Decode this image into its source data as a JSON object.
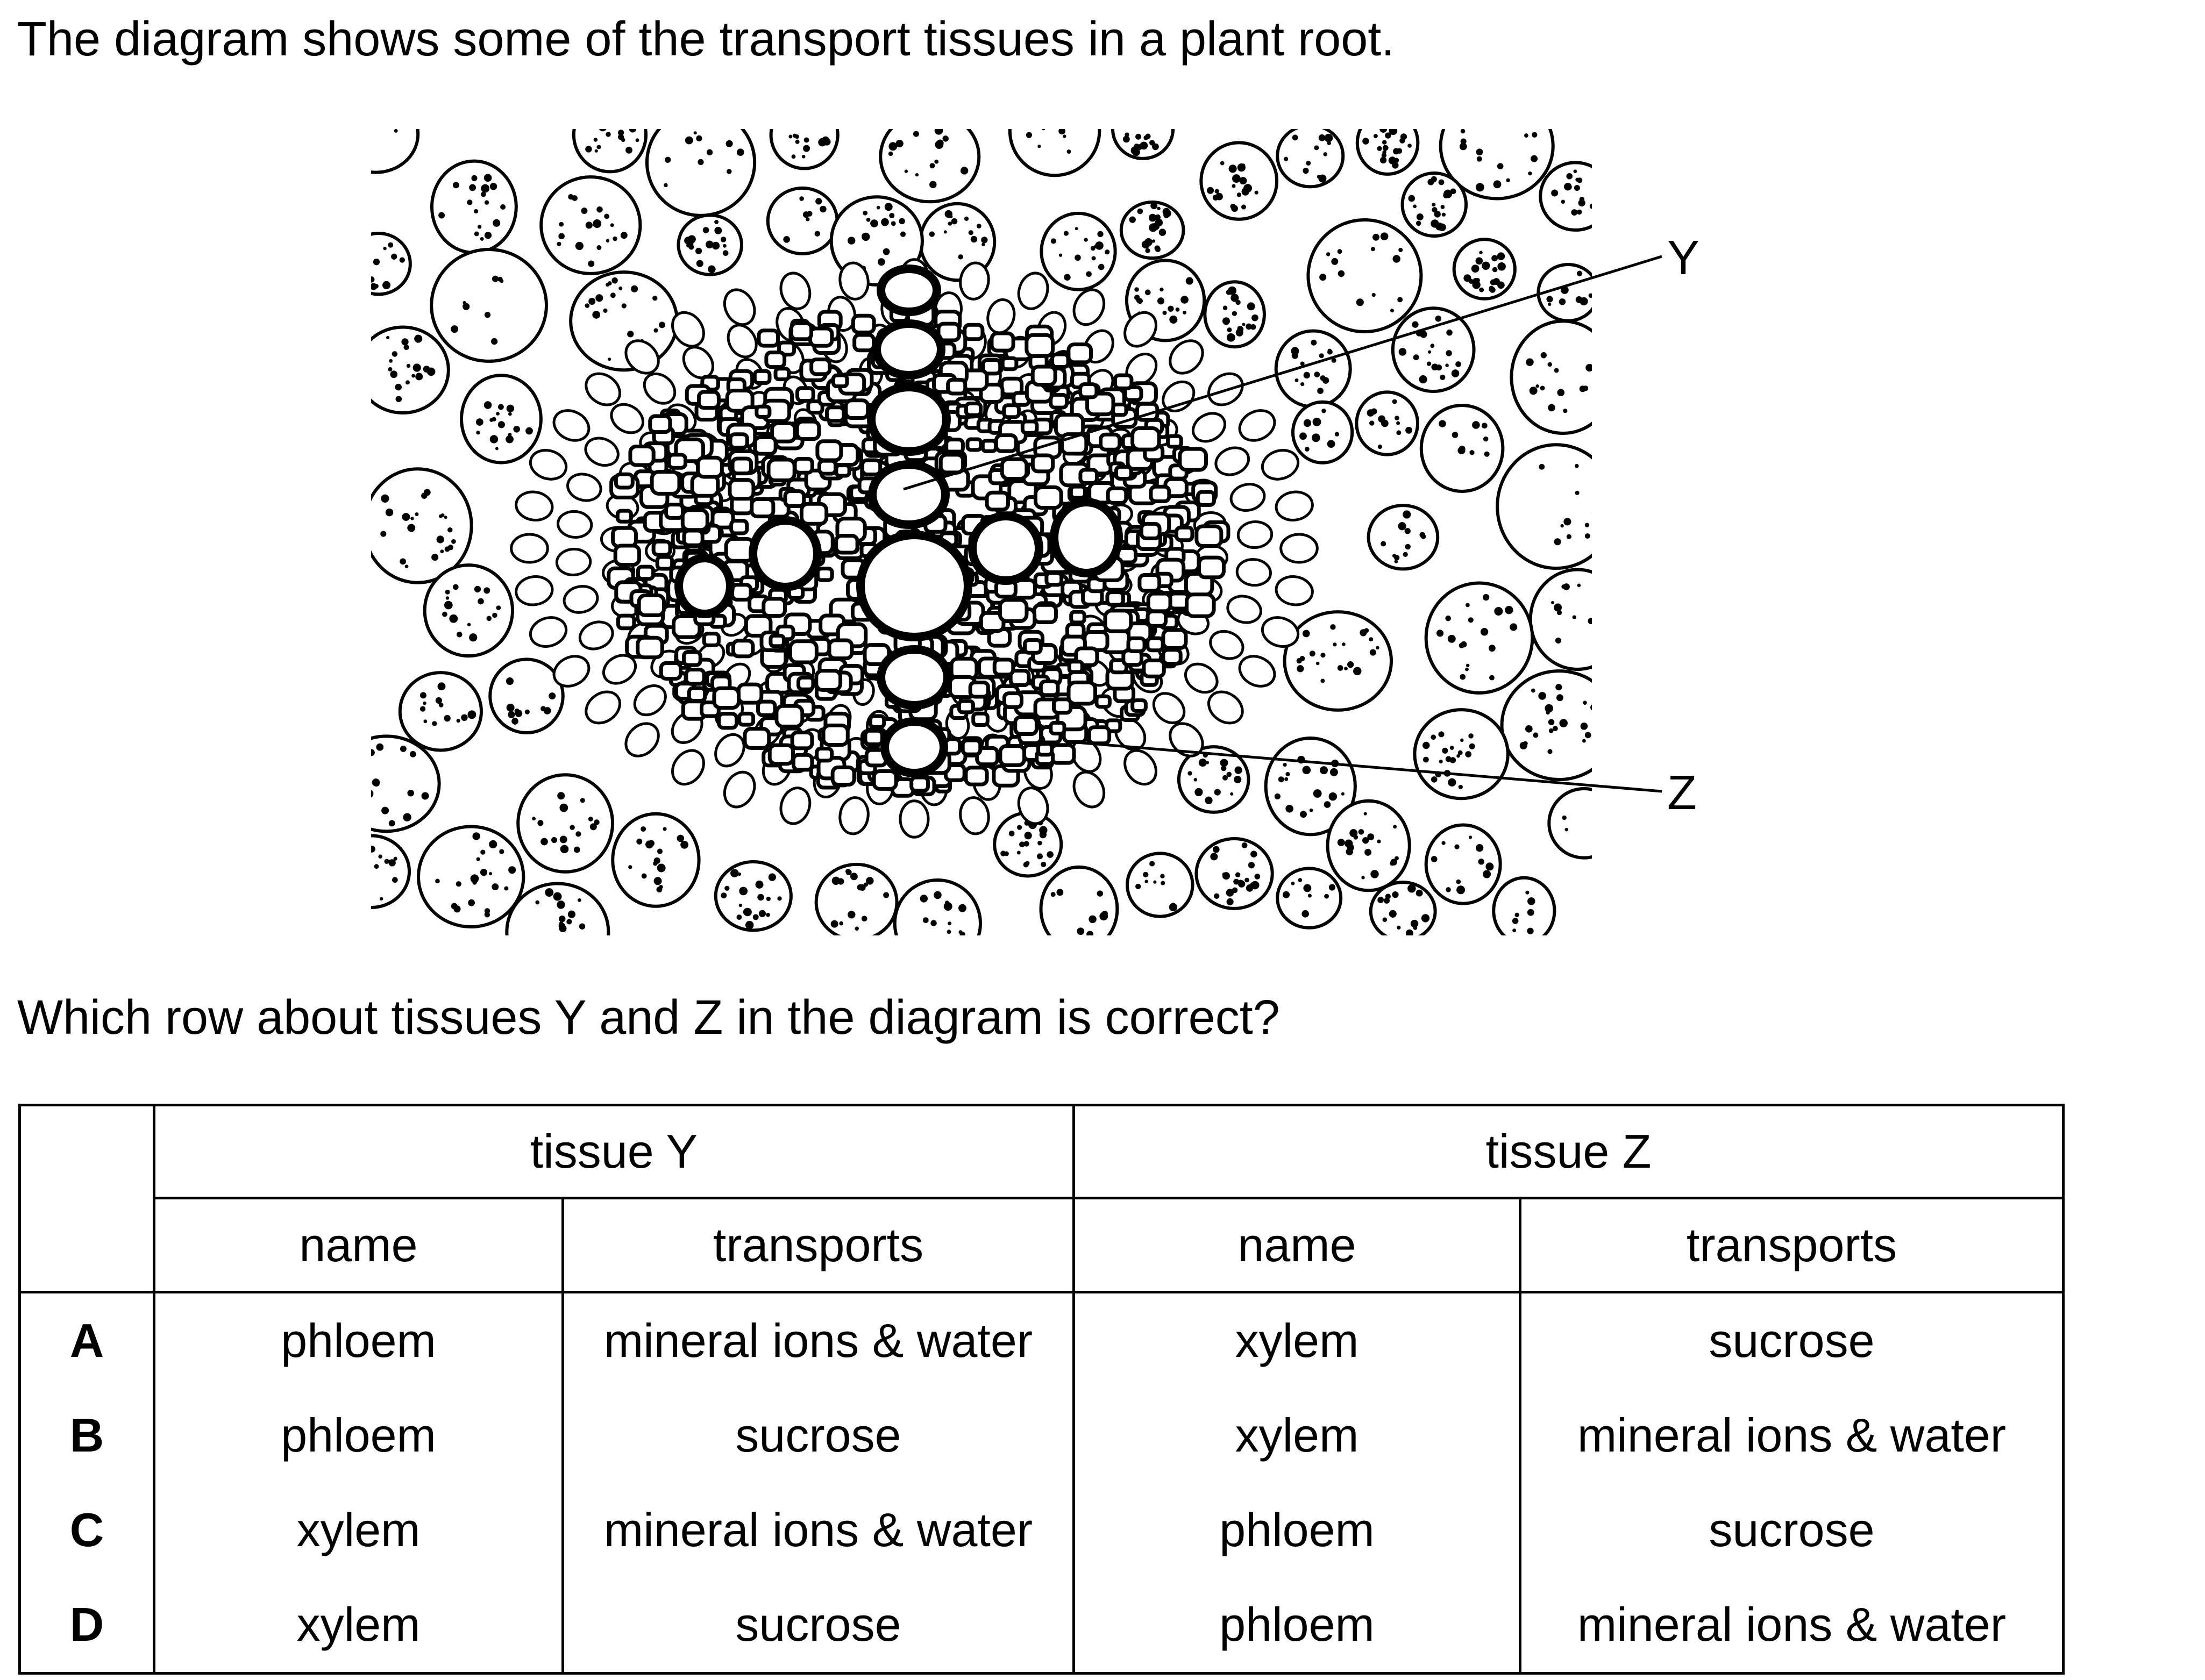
{
  "intro": "The diagram shows some of the transport tissues in a plant root.",
  "diagram": {
    "label_y": "Y",
    "label_z": "Z"
  },
  "question": "Which row about tissues Y and Z in the diagram is correct?",
  "table": {
    "group_headers": [
      "tissue Y",
      "tissue Z"
    ],
    "sub_headers": [
      "name",
      "transports",
      "name",
      "transports"
    ],
    "rows": [
      {
        "letter": "A",
        "y_name": "phloem",
        "y_transports": "mineral ions & water",
        "z_name": "xylem",
        "z_transports": "sucrose"
      },
      {
        "letter": "B",
        "y_name": "phloem",
        "y_transports": "sucrose",
        "z_name": "xylem",
        "z_transports": "mineral ions & water"
      },
      {
        "letter": "C",
        "y_name": "xylem",
        "y_transports": "mineral ions & water",
        "z_name": "phloem",
        "z_transports": "sucrose"
      },
      {
        "letter": "D",
        "y_name": "xylem",
        "y_transports": "sucrose",
        "z_name": "phloem",
        "z_transports": "mineral ions & water"
      }
    ]
  }
}
